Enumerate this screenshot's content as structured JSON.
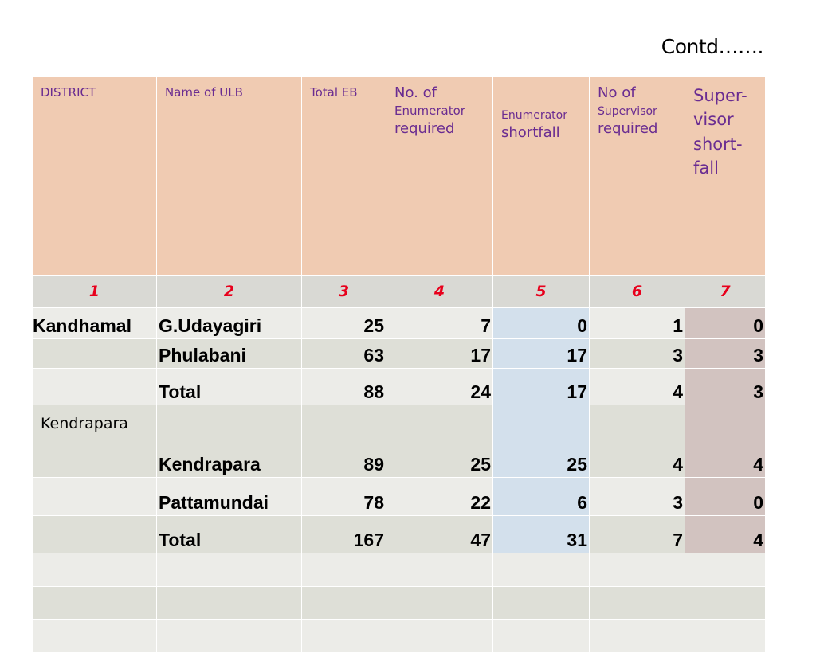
{
  "contd": "Contd…….",
  "headers": {
    "district": "DISTRICT",
    "ulb": "Name of ULB",
    "total_eb": "Total EB",
    "enum_req_1": "No. of",
    "enum_req_2": "Enumerator",
    "enum_req_3": "required",
    "enum_short_1": "Enumerator",
    "enum_short_2": "shortfall",
    "sup_req_1": "No of",
    "sup_req_2": "Supervisor",
    "sup_req_3": "required",
    "sup_short_1": "Super-",
    "sup_short_2": "visor",
    "sup_short_3": "short-",
    "sup_short_4": "fall"
  },
  "column_numbers": [
    "1",
    "2",
    "3",
    "4",
    "5",
    "6",
    "7"
  ],
  "rows": [
    {
      "district": "Kandhamal",
      "ulb": "G.Udayagiri",
      "total_eb": "25",
      "enum_req": "7",
      "enum_short": "0",
      "sup_req": "1",
      "sup_short": "0"
    },
    {
      "district": "",
      "ulb": "Phulabani",
      "total_eb": "63",
      "enum_req": "17",
      "enum_short": "17",
      "sup_req": "3",
      "sup_short": "3"
    },
    {
      "district": "",
      "ulb": "Total",
      "total_eb": "88",
      "enum_req": "24",
      "enum_short": "17",
      "sup_req": "4",
      "sup_short": "3"
    },
    {
      "district": "Kendrapara",
      "ulb": "Kendrapara",
      "total_eb": "89",
      "enum_req": "25",
      "enum_short": "25",
      "sup_req": "4",
      "sup_short": "4"
    },
    {
      "district": "",
      "ulb": "Pattamundai",
      "total_eb": "78",
      "enum_req": "22",
      "enum_short": "6",
      "sup_req": "3",
      "sup_short": "0"
    },
    {
      "district": "",
      "ulb": "Total",
      "total_eb": "167",
      "enum_req": "47",
      "enum_short": "31",
      "sup_req": "7",
      "sup_short": "4"
    }
  ],
  "colors": {
    "header_bg": "#f0cbb2",
    "header_text": "#6a2c91",
    "column_number_text": "#e8001c",
    "shortfall_column_bg": "#d3e0ec",
    "supervisor_shortfall_bg": "#d2c3c0"
  }
}
